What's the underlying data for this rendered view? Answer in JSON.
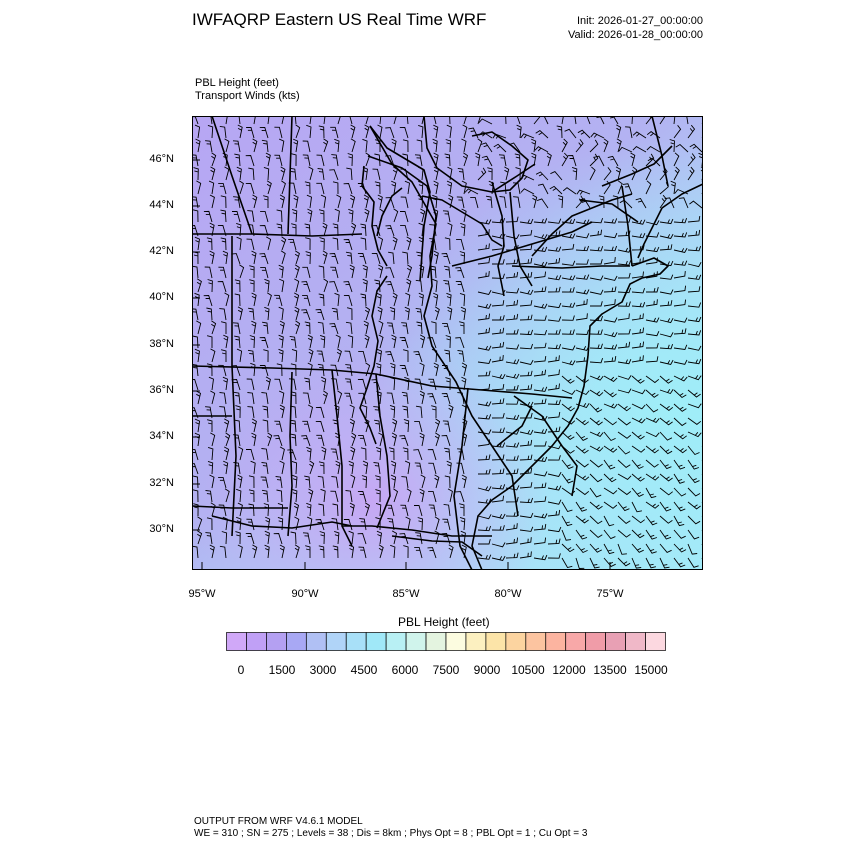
{
  "header": {
    "title": "IWFAQRP Eastern US Real Time WRF",
    "init": "Init: 2026-01-27_00:00:00",
    "valid": "Valid: 2026-01-28_00:00:00"
  },
  "subtitle": {
    "line1": "PBL Height   (feet)",
    "line2": "Transport Winds   (kts)"
  },
  "map": {
    "lat_labels": [
      "46°N",
      "44°N",
      "42°N",
      "40°N",
      "38°N",
      "36°N",
      "34°N",
      "32°N",
      "30°N"
    ],
    "lon_labels": [
      "95°W",
      "90°W",
      "85°W",
      "80°W",
      "75°W"
    ],
    "field": "PBL height shading with wind barbs and state boundaries"
  },
  "colorbar": {
    "title": "PBL Height  (feet)",
    "labels": [
      "0",
      "1500",
      "3000",
      "4500",
      "6000",
      "7500",
      "9000",
      "10500",
      "12000",
      "13500",
      "15000"
    ],
    "colors": [
      "#d0a8f8",
      "#c0a0f6",
      "#b4a0f2",
      "#a8a8f4",
      "#b0c0f4",
      "#b0d4f8",
      "#a8e0f8",
      "#a0e8f8",
      "#b8f0f4",
      "#d0f4ec",
      "#e4f4e0",
      "#fcfce0",
      "#fcf0c0",
      "#fce4a8",
      "#fcd4a0",
      "#fcc4a0",
      "#fcb4a0",
      "#f8a8a8",
      "#f09ca8",
      "#e8a0b4",
      "#f0b8c8",
      "#fcd8e0"
    ]
  },
  "footer": {
    "line1": "OUTPUT FROM WRF V4.6.1 MODEL",
    "line2": "WE = 310 ; SN = 275 ; Levels = 38 ; Dis = 8km ; Phys Opt = 8 ; PBL Opt = 1 ; Cu Opt = 3"
  }
}
